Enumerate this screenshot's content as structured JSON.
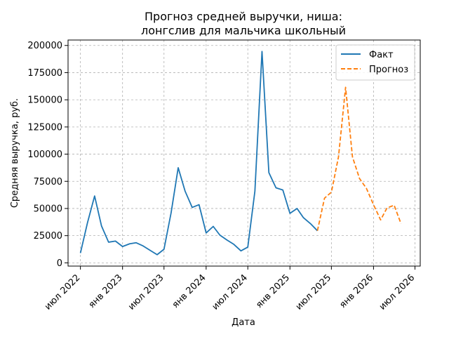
{
  "chart_data": {
    "type": "line",
    "title_lines": [
      "Прогноз средней выручки, ниша:",
      "лонгслив для мальчика школьный"
    ],
    "xlabel": "Дата",
    "ylabel": "Средняя выручка, руб.",
    "xlim": [
      "2022-05-08",
      "2026-07-24"
    ],
    "ylim": [
      -3000,
      205000
    ],
    "x_ticks": [
      {
        "date": "2022-07-01",
        "label": "июл 2022"
      },
      {
        "date": "2023-01-01",
        "label": "янв 2023"
      },
      {
        "date": "2023-07-01",
        "label": "июл 2023"
      },
      {
        "date": "2024-01-01",
        "label": "янв 2024"
      },
      {
        "date": "2024-07-01",
        "label": "июл 2024"
      },
      {
        "date": "2025-01-01",
        "label": "янв 2025"
      },
      {
        "date": "2025-07-01",
        "label": "июл 2025"
      },
      {
        "date": "2026-01-01",
        "label": "янв 2026"
      },
      {
        "date": "2026-07-01",
        "label": "июл 2026"
      }
    ],
    "y_ticks": [
      0,
      25000,
      50000,
      75000,
      100000,
      125000,
      150000,
      175000,
      200000
    ],
    "y_tick_labels": [
      "0",
      "25000",
      "50000",
      "75000",
      "100000",
      "125000",
      "150000",
      "175000",
      "200000"
    ],
    "grid": true,
    "legend_position": "top-right",
    "series": [
      {
        "name": "Факт",
        "color": "#1f77b4",
        "style": "solid",
        "points": [
          {
            "x": "2022-07-01",
            "y": 9000
          },
          {
            "x": "2022-08-01",
            "y": 37000
          },
          {
            "x": "2022-09-01",
            "y": 61500
          },
          {
            "x": "2022-10-01",
            "y": 34000
          },
          {
            "x": "2022-11-01",
            "y": 19000
          },
          {
            "x": "2022-12-01",
            "y": 20000
          },
          {
            "x": "2023-01-01",
            "y": 15000
          },
          {
            "x": "2023-02-01",
            "y": 17500
          },
          {
            "x": "2023-03-01",
            "y": 18500
          },
          {
            "x": "2023-04-01",
            "y": 15500
          },
          {
            "x": "2023-05-01",
            "y": 11500
          },
          {
            "x": "2023-06-01",
            "y": 7500
          },
          {
            "x": "2023-07-01",
            "y": 12500
          },
          {
            "x": "2023-08-01",
            "y": 46000
          },
          {
            "x": "2023-09-01",
            "y": 87500
          },
          {
            "x": "2023-10-01",
            "y": 66000
          },
          {
            "x": "2023-11-01",
            "y": 51000
          },
          {
            "x": "2023-12-01",
            "y": 53500
          },
          {
            "x": "2024-01-01",
            "y": 27500
          },
          {
            "x": "2024-02-01",
            "y": 33500
          },
          {
            "x": "2024-03-01",
            "y": 25500
          },
          {
            "x": "2024-04-01",
            "y": 21000
          },
          {
            "x": "2024-05-01",
            "y": 17000
          },
          {
            "x": "2024-06-01",
            "y": 11000
          },
          {
            "x": "2024-07-01",
            "y": 14500
          },
          {
            "x": "2024-08-01",
            "y": 66000
          },
          {
            "x": "2024-09-01",
            "y": 194500
          },
          {
            "x": "2024-10-01",
            "y": 83000
          },
          {
            "x": "2024-11-01",
            "y": 69000
          },
          {
            "x": "2024-12-01",
            "y": 67000
          },
          {
            "x": "2025-01-01",
            "y": 45500
          },
          {
            "x": "2025-02-01",
            "y": 50000
          },
          {
            "x": "2025-03-01",
            "y": 41500
          },
          {
            "x": "2025-04-01",
            "y": 36000
          },
          {
            "x": "2025-05-01",
            "y": 29500
          }
        ]
      },
      {
        "name": "Прогноз",
        "color": "#ff7f0e",
        "style": "dashed",
        "points": [
          {
            "x": "2025-05-01",
            "y": 29500
          },
          {
            "x": "2025-06-01",
            "y": 59500
          },
          {
            "x": "2025-07-01",
            "y": 65000
          },
          {
            "x": "2025-08-01",
            "y": 97500
          },
          {
            "x": "2025-09-01",
            "y": 161500
          },
          {
            "x": "2025-10-01",
            "y": 97500
          },
          {
            "x": "2025-11-01",
            "y": 77500
          },
          {
            "x": "2025-12-01",
            "y": 68500
          },
          {
            "x": "2026-01-01",
            "y": 53500
          },
          {
            "x": "2026-02-01",
            "y": 39500
          },
          {
            "x": "2026-03-01",
            "y": 50500
          },
          {
            "x": "2026-04-01",
            "y": 53000
          },
          {
            "x": "2026-05-01",
            "y": 36000
          }
        ]
      }
    ]
  }
}
